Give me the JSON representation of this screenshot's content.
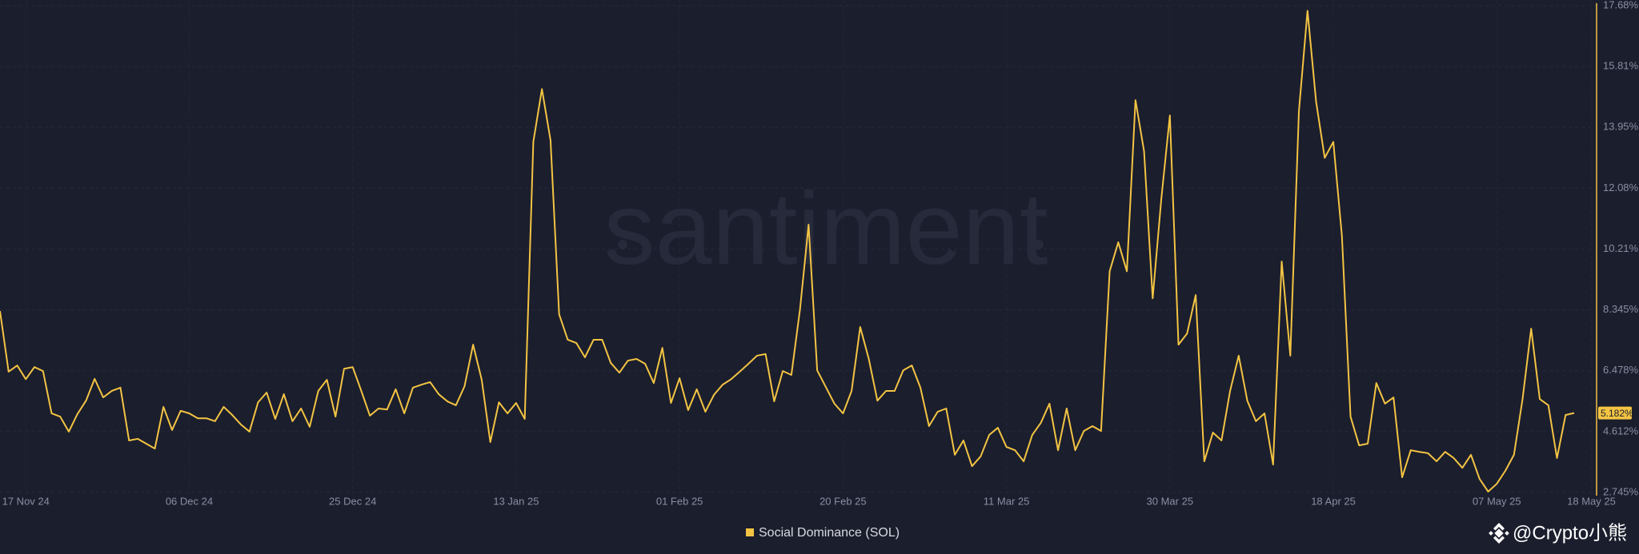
{
  "chart_data": {
    "type": "line",
    "watermark": "santiment",
    "attribution": "@Crypto小熊",
    "last_value_label": "5.182%",
    "grid": true,
    "x": [
      "2024-11-14",
      "2024-11-15",
      "2024-11-16",
      "2024-11-17",
      "2024-11-18",
      "2024-11-19",
      "2024-11-20",
      "2024-11-21",
      "2024-11-22",
      "2024-11-23",
      "2024-11-24",
      "2024-11-25",
      "2024-11-26",
      "2024-11-27",
      "2024-11-28",
      "2024-11-29",
      "2024-11-30",
      "2024-12-01",
      "2024-12-02",
      "2024-12-03",
      "2024-12-04",
      "2024-12-05",
      "2024-12-06",
      "2024-12-07",
      "2024-12-08",
      "2024-12-09",
      "2024-12-10",
      "2024-12-11",
      "2024-12-12",
      "2024-12-13",
      "2024-12-14",
      "2024-12-15",
      "2024-12-16",
      "2024-12-17",
      "2024-12-18",
      "2024-12-19",
      "2024-12-20",
      "2024-12-21",
      "2024-12-22",
      "2024-12-23",
      "2024-12-24",
      "2024-12-25",
      "2024-12-26",
      "2024-12-27",
      "2024-12-28",
      "2024-12-29",
      "2024-12-30",
      "2024-12-31",
      "2025-01-01",
      "2025-01-02",
      "2025-01-03",
      "2025-01-04",
      "2025-01-05",
      "2025-01-06",
      "2025-01-07",
      "2025-01-08",
      "2025-01-09",
      "2025-01-10",
      "2025-01-11",
      "2025-01-12",
      "2025-01-13",
      "2025-01-14",
      "2025-01-15",
      "2025-01-16",
      "2025-01-17",
      "2025-01-18",
      "2025-01-19",
      "2025-01-20",
      "2025-01-21",
      "2025-01-22",
      "2025-01-23",
      "2025-01-24",
      "2025-01-25",
      "2025-01-26",
      "2025-01-27",
      "2025-01-28",
      "2025-01-29",
      "2025-01-30",
      "2025-01-31",
      "2025-02-01",
      "2025-02-02",
      "2025-02-03",
      "2025-02-04",
      "2025-02-05",
      "2025-02-06",
      "2025-02-07",
      "2025-02-08",
      "2025-02-09",
      "2025-02-10",
      "2025-02-11",
      "2025-02-12",
      "2025-02-13",
      "2025-02-14",
      "2025-02-15",
      "2025-02-16",
      "2025-02-17",
      "2025-02-18",
      "2025-02-19",
      "2025-02-20",
      "2025-02-21",
      "2025-02-22",
      "2025-02-23",
      "2025-02-24",
      "2025-02-25",
      "2025-02-26",
      "2025-02-27",
      "2025-02-28",
      "2025-03-01",
      "2025-03-02",
      "2025-03-03",
      "2025-03-04",
      "2025-03-05",
      "2025-03-06",
      "2025-03-07",
      "2025-03-08",
      "2025-03-09",
      "2025-03-10",
      "2025-03-11",
      "2025-03-12",
      "2025-03-13",
      "2025-03-14",
      "2025-03-15",
      "2025-03-16",
      "2025-03-17",
      "2025-03-18",
      "2025-03-19",
      "2025-03-20",
      "2025-03-21",
      "2025-03-22",
      "2025-03-23",
      "2025-03-24",
      "2025-03-25",
      "2025-03-26",
      "2025-03-27",
      "2025-03-28",
      "2025-03-29",
      "2025-03-30",
      "2025-03-31",
      "2025-04-01",
      "2025-04-02",
      "2025-04-03",
      "2025-04-04",
      "2025-04-05",
      "2025-04-06",
      "2025-04-07",
      "2025-04-08",
      "2025-04-09",
      "2025-04-10",
      "2025-04-11",
      "2025-04-12",
      "2025-04-13",
      "2025-04-14",
      "2025-04-15",
      "2025-04-16",
      "2025-04-17",
      "2025-04-18",
      "2025-04-19",
      "2025-04-20",
      "2025-04-21",
      "2025-04-22",
      "2025-04-23",
      "2025-04-24",
      "2025-04-25",
      "2025-04-26",
      "2025-04-27",
      "2025-04-28",
      "2025-04-29",
      "2025-04-30",
      "2025-05-01",
      "2025-05-02",
      "2025-05-03",
      "2025-05-04",
      "2025-05-05",
      "2025-05-06",
      "2025-05-07",
      "2025-05-08",
      "2025-05-09",
      "2025-05-10",
      "2025-05-11",
      "2025-05-12",
      "2025-05-13",
      "2025-05-14",
      "2025-05-15",
      "2025-05-16"
    ],
    "series": [
      {
        "name": "Social Dominance (SOL)",
        "color": "#f3c443",
        "values": [
          8.31,
          6.45,
          6.64,
          6.22,
          6.59,
          6.47,
          5.17,
          5.07,
          4.61,
          5.15,
          5.56,
          6.23,
          5.66,
          5.86,
          5.96,
          4.34,
          4.39,
          4.24,
          4.09,
          5.37,
          4.66,
          5.25,
          5.17,
          5.02,
          5.02,
          4.93,
          5.37,
          5.12,
          4.83,
          4.61,
          5.51,
          5.81,
          5.0,
          5.76,
          4.93,
          5.32,
          4.76,
          5.86,
          6.2,
          5.07,
          6.54,
          6.59,
          5.86,
          5.1,
          5.32,
          5.29,
          5.91,
          5.17,
          5.96,
          6.05,
          6.13,
          5.76,
          5.54,
          5.42,
          6.0,
          7.28,
          6.2,
          4.29,
          5.51,
          5.17,
          5.49,
          5.0,
          13.5,
          15.12,
          13.55,
          8.21,
          7.43,
          7.33,
          6.89,
          7.43,
          7.43,
          6.72,
          6.42,
          6.79,
          6.84,
          6.69,
          6.1,
          7.18,
          5.49,
          6.25,
          5.27,
          5.91,
          5.22,
          5.74,
          6.05,
          6.22,
          6.45,
          6.69,
          6.94,
          6.99,
          5.54,
          6.47,
          6.35,
          8.36,
          10.96,
          6.49,
          5.98,
          5.47,
          5.17,
          5.86,
          7.82,
          6.84,
          5.56,
          5.86,
          5.86,
          6.49,
          6.64,
          5.96,
          4.78,
          5.22,
          5.32,
          3.9,
          4.34,
          3.55,
          3.85,
          4.51,
          4.73,
          4.14,
          4.04,
          3.7,
          4.51,
          4.88,
          5.47,
          4.04,
          5.32,
          4.04,
          4.63,
          4.78,
          4.63,
          9.53,
          10.42,
          9.53,
          14.78,
          13.21,
          8.7,
          11.74,
          14.31,
          7.28,
          7.62,
          8.8,
          3.7,
          4.58,
          4.34,
          5.86,
          6.94,
          5.56,
          4.93,
          5.17,
          3.6,
          9.83,
          6.94,
          14.44,
          17.52,
          14.73,
          13.01,
          13.5,
          10.61,
          5.07,
          4.19,
          4.24,
          6.1,
          5.47,
          5.66,
          3.21,
          4.04,
          3.99,
          3.95,
          3.7,
          3.99,
          3.8,
          3.5,
          3.9,
          3.16,
          2.77,
          3.01,
          3.41,
          3.9,
          5.61,
          7.77,
          5.61,
          5.42,
          3.8,
          5.12,
          5.182
        ]
      }
    ],
    "xlim": [
      "2024-11-14",
      "2025-05-16"
    ],
    "xticks": [
      {
        "value": "2024-11-17",
        "label": "17 Nov 24"
      },
      {
        "value": "2024-12-06",
        "label": "06 Dec 24"
      },
      {
        "value": "2024-12-25",
        "label": "25 Dec 24"
      },
      {
        "value": "2025-01-13",
        "label": "13 Jan 25"
      },
      {
        "value": "2025-02-01",
        "label": "01 Feb 25"
      },
      {
        "value": "2025-02-20",
        "label": "20 Feb 25"
      },
      {
        "value": "2025-03-11",
        "label": "11 Mar 25"
      },
      {
        "value": "2025-03-30",
        "label": "30 Mar 25"
      },
      {
        "value": "2025-04-18",
        "label": "18 Apr 25"
      },
      {
        "value": "2025-05-07",
        "label": "07 May 25"
      },
      {
        "value": "2025-05-18",
        "label": "18 May 25"
      }
    ],
    "ylim": [
      2.745,
      17.68
    ],
    "yticks": [
      {
        "value": 2.745,
        "label": "2.745%"
      },
      {
        "value": 4.612,
        "label": "4.612%"
      },
      {
        "value": 6.478,
        "label": "6.478%"
      },
      {
        "value": 8.345,
        "label": "8.345%"
      },
      {
        "value": 10.21,
        "label": "10.21%"
      },
      {
        "value": 12.08,
        "label": "12.08%"
      },
      {
        "value": 13.95,
        "label": "13.95%"
      },
      {
        "value": 15.81,
        "label": "15.81%"
      },
      {
        "value": 17.68,
        "label": "17.68%"
      }
    ]
  }
}
